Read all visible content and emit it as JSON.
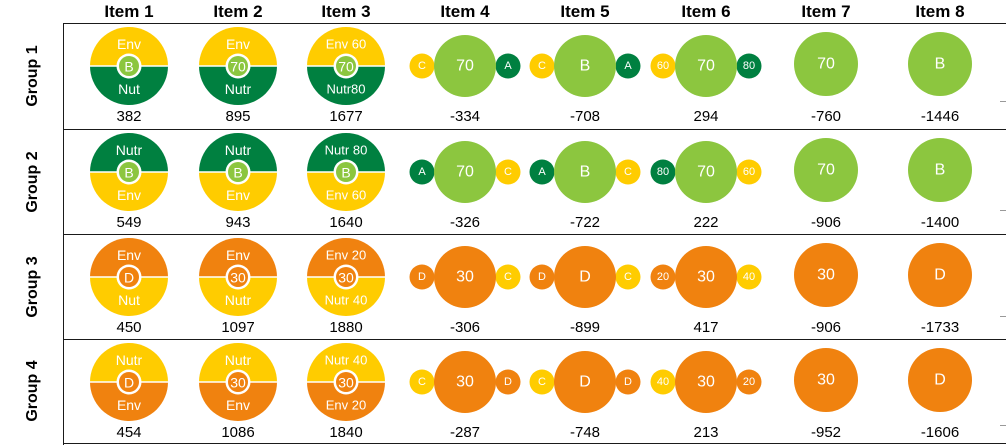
{
  "columns": [
    "Item 1",
    "Item 2",
    "Item 3",
    "Item 4",
    "Item 5",
    "Item 6",
    "Item 7",
    "Item 8"
  ],
  "colors": {
    "dark_green": "#008040",
    "light_green": "#8cc63f",
    "yellow": "#ffcc00",
    "orange": "#f0820f",
    "white": "#ffffff"
  },
  "rows": [
    {
      "label": "Group 1",
      "cells": [
        {
          "type": "split",
          "top_color": "yellow",
          "bottom_color": "dark_green",
          "top_text": "Env",
          "bottom_text": "Nut",
          "center_text": "B",
          "center_color": "light_green",
          "score": "382"
        },
        {
          "type": "split",
          "top_color": "yellow",
          "bottom_color": "dark_green",
          "top_text": "Env",
          "bottom_text": "Nutr",
          "center_text": "70",
          "center_color": "light_green",
          "score": "895"
        },
        {
          "type": "split",
          "top_color": "yellow",
          "bottom_color": "dark_green",
          "top_text": "Env 60",
          "bottom_text": "Nutr80",
          "center_text": "70",
          "center_color": "light_green",
          "score": "1677"
        },
        {
          "type": "trio",
          "main_color": "light_green",
          "main_text": "70",
          "left_color": "yellow",
          "left_text": "C",
          "right_color": "dark_green",
          "right_text": "A",
          "score": "-334"
        },
        {
          "type": "trio",
          "main_color": "light_green",
          "main_text": "B",
          "left_color": "yellow",
          "left_text": "C",
          "right_color": "dark_green",
          "right_text": "A",
          "score": "-708"
        },
        {
          "type": "trio",
          "main_color": "light_green",
          "main_text": "70",
          "left_color": "yellow",
          "left_text": "60",
          "right_color": "dark_green",
          "right_text": "80",
          "score": "294"
        },
        {
          "type": "single",
          "main_color": "light_green",
          "main_text": "70",
          "score": "-760"
        },
        {
          "type": "single",
          "main_color": "light_green",
          "main_text": "B",
          "score": "-1446"
        }
      ]
    },
    {
      "label": "Group 2",
      "cells": [
        {
          "type": "split",
          "top_color": "dark_green",
          "bottom_color": "yellow",
          "top_text": "Nutr",
          "bottom_text": "Env",
          "center_text": "B",
          "center_color": "light_green",
          "score": "549"
        },
        {
          "type": "split",
          "top_color": "dark_green",
          "bottom_color": "yellow",
          "top_text": "Nutr",
          "bottom_text": "Env",
          "center_text": "B",
          "center_color": "light_green",
          "score": "943"
        },
        {
          "type": "split",
          "top_color": "dark_green",
          "bottom_color": "yellow",
          "top_text": "Nutr 80",
          "bottom_text": "Env 60",
          "center_text": "B",
          "center_color": "light_green",
          "score": "1640"
        },
        {
          "type": "trio",
          "main_color": "light_green",
          "main_text": "70",
          "left_color": "dark_green",
          "left_text": "A",
          "right_color": "yellow",
          "right_text": "C",
          "score": "-326"
        },
        {
          "type": "trio",
          "main_color": "light_green",
          "main_text": "B",
          "left_color": "dark_green",
          "left_text": "A",
          "right_color": "yellow",
          "right_text": "C",
          "score": "-722"
        },
        {
          "type": "trio",
          "main_color": "light_green",
          "main_text": "70",
          "left_color": "dark_green",
          "left_text": "80",
          "right_color": "yellow",
          "right_text": "60",
          "score": "222"
        },
        {
          "type": "single",
          "main_color": "light_green",
          "main_text": "70",
          "score": "-906"
        },
        {
          "type": "single",
          "main_color": "light_green",
          "main_text": "B",
          "score": "-1400"
        }
      ]
    },
    {
      "label": "Group 3",
      "cells": [
        {
          "type": "split",
          "top_color": "orange",
          "bottom_color": "yellow",
          "top_text": "Env",
          "bottom_text": "Nut",
          "center_text": "D",
          "center_color": "orange",
          "score": "450"
        },
        {
          "type": "split",
          "top_color": "orange",
          "bottom_color": "yellow",
          "top_text": "Env",
          "bottom_text": "Nutr",
          "center_text": "30",
          "center_color": "orange",
          "score": "1097"
        },
        {
          "type": "split",
          "top_color": "orange",
          "bottom_color": "yellow",
          "top_text": "Env 20",
          "bottom_text": "Nutr 40",
          "center_text": "30",
          "center_color": "orange",
          "score": "1880"
        },
        {
          "type": "trio",
          "main_color": "orange",
          "main_text": "30",
          "left_color": "orange",
          "left_text": "D",
          "right_color": "yellow",
          "right_text": "C",
          "score": "-306"
        },
        {
          "type": "trio",
          "main_color": "orange",
          "main_text": "D",
          "left_color": "orange",
          "left_text": "D",
          "right_color": "yellow",
          "right_text": "C",
          "score": "-899"
        },
        {
          "type": "trio",
          "main_color": "orange",
          "main_text": "30",
          "left_color": "orange",
          "left_text": "20",
          "right_color": "yellow",
          "right_text": "40",
          "score": "417"
        },
        {
          "type": "single",
          "main_color": "orange",
          "main_text": "30",
          "score": "-906"
        },
        {
          "type": "single",
          "main_color": "orange",
          "main_text": "D",
          "score": "-1733"
        }
      ]
    },
    {
      "label": "Group 4",
      "cells": [
        {
          "type": "split",
          "top_color": "yellow",
          "bottom_color": "orange",
          "top_text": "Nutr",
          "bottom_text": "Env",
          "center_text": "D",
          "center_color": "orange",
          "score": "454"
        },
        {
          "type": "split",
          "top_color": "yellow",
          "bottom_color": "orange",
          "top_text": "Nutr",
          "bottom_text": "Env",
          "center_text": "30",
          "center_color": "orange",
          "score": "1086"
        },
        {
          "type": "split",
          "top_color": "yellow",
          "bottom_color": "orange",
          "top_text": "Nutr 40",
          "bottom_text": "Env 20",
          "center_text": "30",
          "center_color": "orange",
          "score": "1840"
        },
        {
          "type": "trio",
          "main_color": "orange",
          "main_text": "30",
          "left_color": "yellow",
          "left_text": "C",
          "right_color": "orange",
          "right_text": "D",
          "score": "-287"
        },
        {
          "type": "trio",
          "main_color": "orange",
          "main_text": "D",
          "left_color": "yellow",
          "left_text": "C",
          "right_color": "orange",
          "right_text": "D",
          "score": "-748"
        },
        {
          "type": "trio",
          "main_color": "orange",
          "main_text": "30",
          "left_color": "yellow",
          "left_text": "40",
          "right_color": "orange",
          "right_text": "20",
          "score": "213"
        },
        {
          "type": "single",
          "main_color": "orange",
          "main_text": "30",
          "score": "-952"
        },
        {
          "type": "single",
          "main_color": "orange",
          "main_text": "D",
          "score": "-1606"
        }
      ]
    }
  ]
}
